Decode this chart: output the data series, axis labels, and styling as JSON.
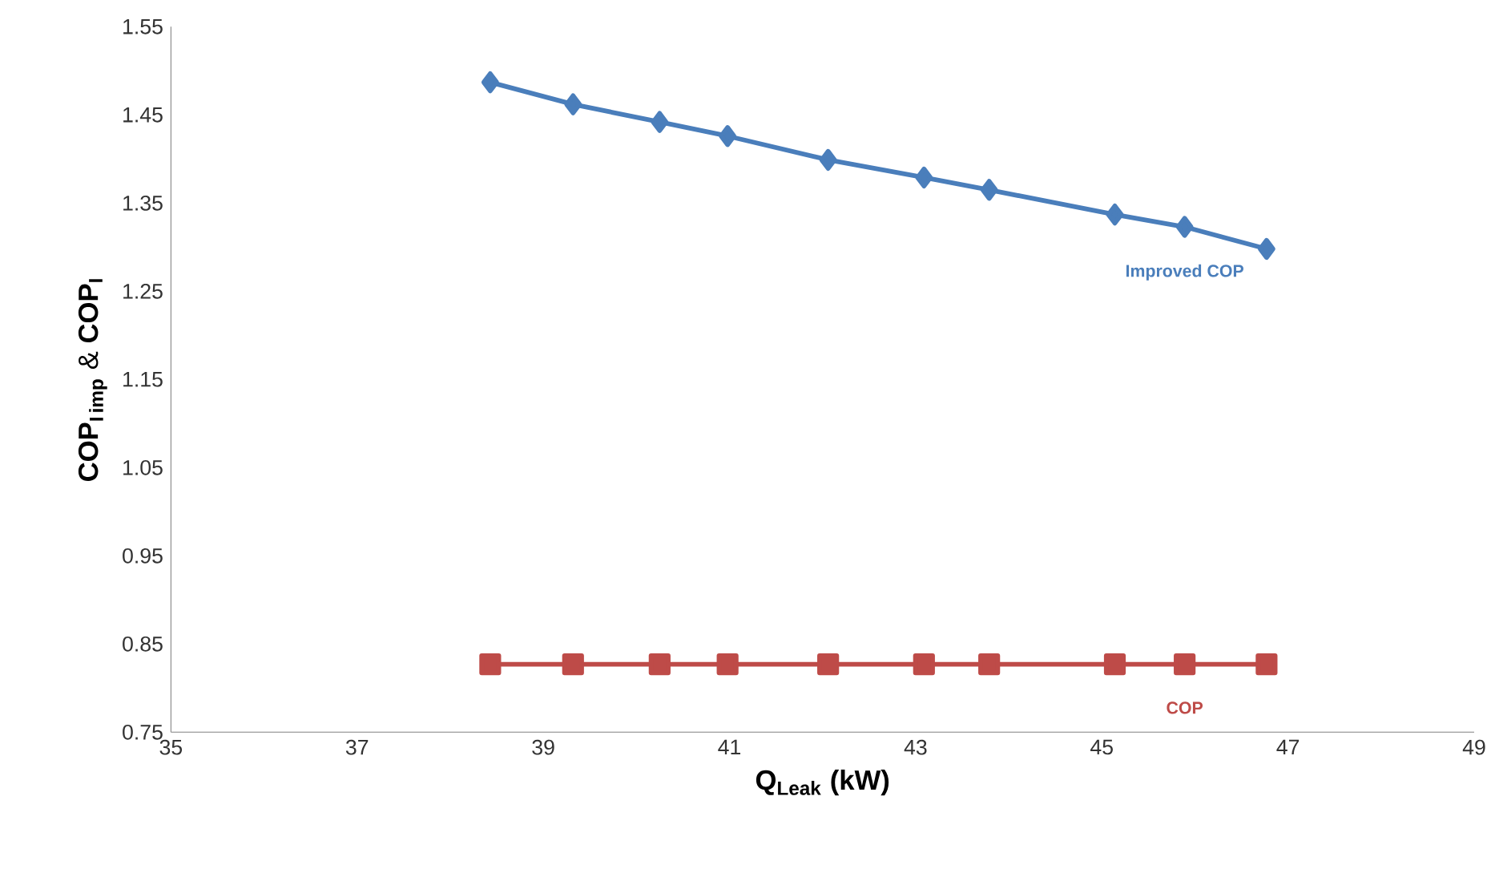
{
  "chart_data": {
    "type": "line",
    "xlabel": "**Q**$_{Leak}$ (kW)",
    "ylabel": "\\mathbf{COP_{I\\,imp}\\ \\&\\ COP_{I}}",
    "xlim": [
      35,
      49
    ],
    "xticks": [
      35,
      37,
      39,
      41,
      43,
      45,
      47,
      49
    ],
    "ylim": [
      0.75,
      1.55
    ],
    "yticks": [
      0.75,
      0.85,
      0.95,
      1.05,
      1.15,
      1.25,
      1.35,
      1.45,
      1.55
    ],
    "grid": false,
    "legend": false,
    "line_style": "solid",
    "series": [
      {
        "name": "Improved COP",
        "color": "#4a7ebb",
        "marker": "diamond",
        "x": [
          38.43,
          39.32,
          40.25,
          40.98,
          42.06,
          43.09,
          43.79,
          45.14,
          45.89,
          46.77
        ],
        "values": [
          1.487,
          1.462,
          1.442,
          1.426,
          1.399,
          1.379,
          1.365,
          1.337,
          1.323,
          1.298
        ]
      },
      {
        "name": "COP",
        "color": "#be4b48",
        "marker": "square",
        "x": [
          38.43,
          39.32,
          40.25,
          40.98,
          42.06,
          43.09,
          43.79,
          45.14,
          45.89,
          46.77
        ],
        "values": [
          0.827,
          0.827,
          0.827,
          0.827,
          0.827,
          0.827,
          0.827,
          0.827,
          0.827,
          0.827
        ]
      }
    ]
  }
}
